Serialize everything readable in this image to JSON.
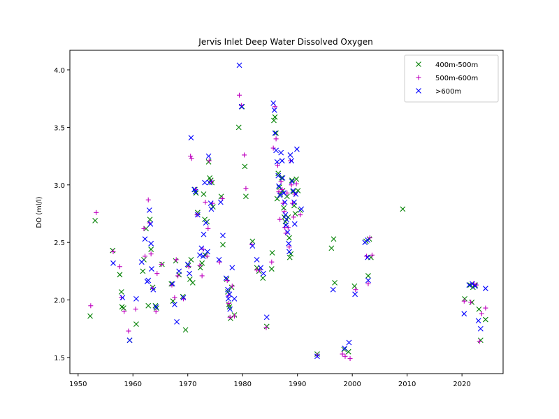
{
  "chart_data": {
    "type": "scatter",
    "title": "Jervis Inlet Deep Water Dissolved Oxygen",
    "xlabel": "",
    "ylabel": "DO (ml/l)",
    "xlim": [
      1948.5,
      2027.5
    ],
    "ylim": [
      1.36,
      4.17
    ],
    "xticks": [
      1950,
      1960,
      1970,
      1980,
      1990,
      2000,
      2010,
      2020
    ],
    "yticks": [
      1.5,
      2.0,
      2.5,
      3.0,
      3.5,
      4.0
    ],
    "ytick_labels": [
      "1.5",
      "2.0",
      "2.5",
      "3.0",
      "3.5",
      "4.0"
    ],
    "grid": false,
    "legend_position": "top-right",
    "series": [
      {
        "name": "400m-500m",
        "marker": "x",
        "color": "#008000",
        "points": [
          [
            1952.2,
            1.86
          ],
          [
            1953.1,
            2.69
          ],
          [
            1956.3,
            2.43
          ],
          [
            1957.6,
            2.22
          ],
          [
            1957.9,
            2.07
          ],
          [
            1958.0,
            1.94
          ],
          [
            1958.3,
            1.93
          ],
          [
            1959.4,
            1.65
          ],
          [
            1960.6,
            1.79
          ],
          [
            1961.8,
            2.25
          ],
          [
            1962.0,
            2.35
          ],
          [
            1962.4,
            2.62
          ],
          [
            1962.8,
            1.95
          ],
          [
            1963.1,
            2.7
          ],
          [
            1963.3,
            2.44
          ],
          [
            1963.6,
            2.11
          ],
          [
            1964.1,
            1.95
          ],
          [
            1964.3,
            1.93
          ],
          [
            1965.3,
            2.31
          ],
          [
            1967.0,
            2.14
          ],
          [
            1967.3,
            1.99
          ],
          [
            1967.8,
            2.34
          ],
          [
            1968.4,
            2.22
          ],
          [
            1969.1,
            2.03
          ],
          [
            1969.6,
            1.74
          ],
          [
            1970.1,
            2.3
          ],
          [
            1970.4,
            2.18
          ],
          [
            1970.6,
            2.35
          ],
          [
            1970.9,
            2.15
          ],
          [
            1971.3,
            2.96
          ],
          [
            1971.5,
            2.93
          ],
          [
            1971.8,
            2.76
          ],
          [
            1972.3,
            2.28
          ],
          [
            1972.6,
            2.32
          ],
          [
            1972.9,
            2.92
          ],
          [
            1973.1,
            2.7
          ],
          [
            1973.2,
            2.39
          ],
          [
            1973.5,
            2.68
          ],
          [
            1973.8,
            3.2
          ],
          [
            1974.0,
            3.06
          ],
          [
            1974.2,
            3.04
          ],
          [
            1974.4,
            3.02
          ],
          [
            1974.6,
            2.81
          ],
          [
            1976.1,
            2.9
          ],
          [
            1976.4,
            2.48
          ],
          [
            1977.1,
            2.18
          ],
          [
            1977.3,
            2.07
          ],
          [
            1977.5,
            1.96
          ],
          [
            1977.6,
            1.94
          ],
          [
            1977.8,
            1.84
          ],
          [
            1978.0,
            2.11
          ],
          [
            1978.5,
            1.87
          ],
          [
            1979.3,
            3.5
          ],
          [
            1979.9,
            3.68
          ],
          [
            1980.4,
            3.16
          ],
          [
            1980.6,
            2.9
          ],
          [
            1981.8,
            2.51
          ],
          [
            1982.6,
            2.28
          ],
          [
            1983.0,
            2.25
          ],
          [
            1983.7,
            2.19
          ],
          [
            1984.4,
            1.77
          ],
          [
            1985.3,
            2.27
          ],
          [
            1985.4,
            2.41
          ],
          [
            1985.7,
            3.56
          ],
          [
            1985.9,
            3.59
          ],
          [
            1986.1,
            3.45
          ],
          [
            1986.3,
            2.88
          ],
          [
            1986.5,
            3.1
          ],
          [
            1986.7,
            2.98
          ],
          [
            1986.9,
            2.92
          ],
          [
            1987.1,
            3.06
          ],
          [
            1987.3,
            2.95
          ],
          [
            1987.5,
            2.8
          ],
          [
            1987.6,
            2.72
          ],
          [
            1987.8,
            2.68
          ],
          [
            1987.9,
            2.65
          ],
          [
            1988.1,
            2.9
          ],
          [
            1988.3,
            2.72
          ],
          [
            1988.5,
            2.54
          ],
          [
            1988.6,
            2.37
          ],
          [
            1988.8,
            2.4
          ],
          [
            1989.0,
            3.04
          ],
          [
            1989.2,
            2.94
          ],
          [
            1989.4,
            2.82
          ],
          [
            1989.6,
            2.75
          ],
          [
            1989.8,
            3.05
          ],
          [
            1990.1,
            2.95
          ],
          [
            1990.5,
            2.78
          ],
          [
            1993.6,
            1.53
          ],
          [
            1996.2,
            2.45
          ],
          [
            1996.6,
            2.53
          ],
          [
            1996.8,
            2.15
          ],
          [
            1998.5,
            1.57
          ],
          [
            1999.3,
            1.55
          ],
          [
            2000.4,
            2.12
          ],
          [
            2002.5,
            2.51
          ],
          [
            2003.1,
            2.53
          ],
          [
            2003.4,
            2.37
          ],
          [
            2002.9,
            2.21
          ],
          [
            2009.2,
            2.79
          ],
          [
            2020.5,
            2.01
          ],
          [
            2021.5,
            2.13
          ],
          [
            2021.8,
            1.98
          ],
          [
            2022.0,
            2.11
          ],
          [
            2022.4,
            2.13
          ],
          [
            2023.1,
            1.92
          ],
          [
            2023.4,
            1.65
          ],
          [
            2024.3,
            1.83
          ]
        ]
      },
      {
        "name": "500m-600m",
        "marker": "+",
        "color": "#bf00bf",
        "points": [
          [
            1952.3,
            1.95
          ],
          [
            1953.3,
            2.76
          ],
          [
            1956.4,
            2.42
          ],
          [
            1957.6,
            2.29
          ],
          [
            1957.9,
            2.02
          ],
          [
            1958.4,
            1.9
          ],
          [
            1959.2,
            1.73
          ],
          [
            1960.5,
            1.92
          ],
          [
            1962.0,
            2.62
          ],
          [
            1962.2,
            2.38
          ],
          [
            1962.8,
            2.87
          ],
          [
            1963.0,
            2.67
          ],
          [
            1963.3,
            2.4
          ],
          [
            1963.6,
            2.1
          ],
          [
            1964.2,
            1.9
          ],
          [
            1964.4,
            2.23
          ],
          [
            1965.2,
            2.31
          ],
          [
            1967.1,
            2.13
          ],
          [
            1967.6,
            2.02
          ],
          [
            1967.9,
            2.35
          ],
          [
            1968.2,
            2.21
          ],
          [
            1969.2,
            2.01
          ],
          [
            1970.2,
            2.29
          ],
          [
            1970.5,
            3.25
          ],
          [
            1970.7,
            3.23
          ],
          [
            1971.4,
            2.96
          ],
          [
            1971.7,
            2.74
          ],
          [
            1972.2,
            2.3
          ],
          [
            1972.6,
            2.21
          ],
          [
            1972.8,
            2.44
          ],
          [
            1973.2,
            2.85
          ],
          [
            1973.5,
            2.38
          ],
          [
            1973.7,
            2.62
          ],
          [
            1973.9,
            3.21
          ],
          [
            1974.3,
            3.03
          ],
          [
            1974.5,
            2.84
          ],
          [
            1975.8,
            2.33
          ],
          [
            1976.3,
            2.88
          ],
          [
            1977.2,
            2.17
          ],
          [
            1977.4,
            2.04
          ],
          [
            1977.5,
            1.97
          ],
          [
            1977.7,
            1.85
          ],
          [
            1978.1,
            2.12
          ],
          [
            1978.5,
            1.86
          ],
          [
            1979.4,
            3.78
          ],
          [
            1979.8,
            3.69
          ],
          [
            1980.3,
            3.26
          ],
          [
            1980.6,
            2.97
          ],
          [
            1981.7,
            2.48
          ],
          [
            1982.6,
            2.26
          ],
          [
            1983.1,
            2.26
          ],
          [
            1984.3,
            1.76
          ],
          [
            1985.3,
            2.33
          ],
          [
            1985.6,
            3.32
          ],
          [
            1985.9,
            3.68
          ],
          [
            1986.1,
            3.4
          ],
          [
            1986.4,
            3.17
          ],
          [
            1986.6,
            2.94
          ],
          [
            1986.8,
            2.7
          ],
          [
            1987.0,
            3.03
          ],
          [
            1987.2,
            2.96
          ],
          [
            1987.4,
            2.84
          ],
          [
            1987.6,
            2.77
          ],
          [
            1987.7,
            2.63
          ],
          [
            1987.9,
            2.58
          ],
          [
            1988.1,
            2.93
          ],
          [
            1988.3,
            2.63
          ],
          [
            1988.5,
            2.46
          ],
          [
            1988.7,
            3.21
          ],
          [
            1988.9,
            3.0
          ],
          [
            1989.1,
            2.84
          ],
          [
            1989.3,
            2.72
          ],
          [
            1989.5,
            2.92
          ],
          [
            1989.8,
            3.01
          ],
          [
            1990.5,
            2.74
          ],
          [
            1993.6,
            1.52
          ],
          [
            1998.2,
            1.53
          ],
          [
            1998.7,
            1.51
          ],
          [
            1999.6,
            1.49
          ],
          [
            2000.6,
            2.09
          ],
          [
            2002.6,
            2.38
          ],
          [
            2002.9,
            2.14
          ],
          [
            2003.2,
            2.54
          ],
          [
            2003.6,
            2.39
          ],
          [
            2020.4,
            1.99
          ],
          [
            2021.6,
            1.98
          ],
          [
            2022.1,
            2.14
          ],
          [
            2022.6,
            2.13
          ],
          [
            2023.2,
            1.64
          ],
          [
            2023.6,
            1.88
          ],
          [
            2024.3,
            1.93
          ]
        ]
      },
      {
        "name": ">600m",
        "marker": "x",
        "color": "#0000ff",
        "points": [
          [
            1956.4,
            2.32
          ],
          [
            1958.1,
            2.02
          ],
          [
            1959.4,
            1.65
          ],
          [
            1960.6,
            2.01
          ],
          [
            1961.6,
            2.33
          ],
          [
            1962.2,
            2.53
          ],
          [
            1962.6,
            2.16
          ],
          [
            1962.8,
            2.17
          ],
          [
            1963.0,
            2.78
          ],
          [
            1963.2,
            2.66
          ],
          [
            1963.3,
            2.49
          ],
          [
            1963.4,
            2.27
          ],
          [
            1963.7,
            2.09
          ],
          [
            1964.2,
            1.94
          ],
          [
            1967.2,
            2.14
          ],
          [
            1967.6,
            1.96
          ],
          [
            1968.0,
            1.81
          ],
          [
            1968.4,
            2.25
          ],
          [
            1969.2,
            2.02
          ],
          [
            1970.0,
            2.31
          ],
          [
            1970.3,
            2.23
          ],
          [
            1970.6,
            3.41
          ],
          [
            1971.2,
            2.96
          ],
          [
            1971.4,
            2.94
          ],
          [
            1971.8,
            2.74
          ],
          [
            1972.2,
            2.39
          ],
          [
            1972.5,
            2.45
          ],
          [
            1972.8,
            2.38
          ],
          [
            1972.9,
            2.57
          ],
          [
            1973.1,
            3.02
          ],
          [
            1973.3,
            2.67
          ],
          [
            1973.6,
            2.42
          ],
          [
            1973.8,
            3.25
          ],
          [
            1974.0,
            3.02
          ],
          [
            1974.2,
            2.84
          ],
          [
            1974.3,
            2.79
          ],
          [
            1975.7,
            2.35
          ],
          [
            1976.0,
            2.85
          ],
          [
            1976.4,
            2.56
          ],
          [
            1977.0,
            2.19
          ],
          [
            1977.3,
            2.09
          ],
          [
            1977.4,
            2.01
          ],
          [
            1977.6,
            2.05
          ],
          [
            1977.7,
            1.92
          ],
          [
            1978.1,
            2.28
          ],
          [
            1978.5,
            2.01
          ],
          [
            1979.4,
            4.04
          ],
          [
            1979.8,
            3.68
          ],
          [
            1981.8,
            2.47
          ],
          [
            1982.6,
            2.35
          ],
          [
            1983.3,
            2.28
          ],
          [
            1983.8,
            2.23
          ],
          [
            1984.4,
            1.85
          ],
          [
            1985.6,
            3.71
          ],
          [
            1985.8,
            3.65
          ],
          [
            1985.9,
            3.45
          ],
          [
            1986.1,
            3.3
          ],
          [
            1986.3,
            3.2
          ],
          [
            1986.5,
            3.08
          ],
          [
            1986.6,
            2.99
          ],
          [
            1986.8,
            2.91
          ],
          [
            1987.0,
            3.28
          ],
          [
            1987.2,
            3.21
          ],
          [
            1987.3,
            3.06
          ],
          [
            1987.5,
            2.93
          ],
          [
            1987.7,
            2.85
          ],
          [
            1987.8,
            2.74
          ],
          [
            1987.9,
            2.65
          ],
          [
            1988.0,
            2.7
          ],
          [
            1988.2,
            2.59
          ],
          [
            1988.4,
            2.49
          ],
          [
            1988.5,
            2.42
          ],
          [
            1988.7,
            3.26
          ],
          [
            1988.9,
            3.21
          ],
          [
            1989.0,
            3.03
          ],
          [
            1989.2,
            2.95
          ],
          [
            1989.4,
            2.85
          ],
          [
            1989.5,
            2.66
          ],
          [
            1989.7,
            2.92
          ],
          [
            1989.9,
            3.31
          ],
          [
            1990.7,
            2.79
          ],
          [
            1993.6,
            1.51
          ],
          [
            1996.5,
            2.09
          ],
          [
            1998.6,
            1.58
          ],
          [
            1999.4,
            1.63
          ],
          [
            2000.5,
            2.05
          ],
          [
            2002.3,
            2.5
          ],
          [
            2002.8,
            2.52
          ],
          [
            2002.8,
            2.37
          ],
          [
            2002.9,
            2.17
          ],
          [
            2020.4,
            1.88
          ],
          [
            2021.3,
            2.13
          ],
          [
            2021.9,
            2.14
          ],
          [
            2022.4,
            2.12
          ],
          [
            2023.0,
            1.82
          ],
          [
            2023.4,
            1.75
          ],
          [
            2024.3,
            2.1
          ]
        ]
      }
    ]
  }
}
